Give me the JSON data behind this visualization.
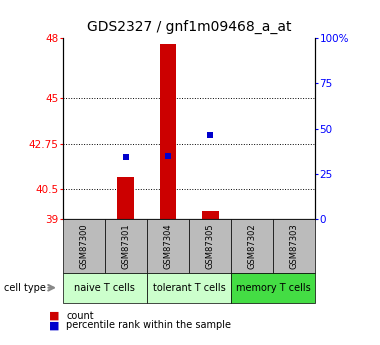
{
  "title": "GDS2327 / gnf1m09468_a_at",
  "samples": [
    "GSM87300",
    "GSM87301",
    "GSM87304",
    "GSM87305",
    "GSM87302",
    "GSM87303"
  ],
  "count_values": [
    39.0,
    41.1,
    47.7,
    39.4,
    39.0,
    39.0
  ],
  "percentile_values": [
    null,
    42.1,
    42.15,
    43.2,
    null,
    null
  ],
  "ylim_left": [
    39,
    48
  ],
  "yticks_left": [
    39,
    40.5,
    42.75,
    45,
    48
  ],
  "yticks_right": [
    0,
    25,
    50,
    75,
    100
  ],
  "bar_color": "#cc0000",
  "percentile_color": "#0000cc",
  "title_fontsize": 10,
  "tick_fontsize": 7.5,
  "group_configs": [
    {
      "name": "naive T cells",
      "color": "#ccffcc",
      "start": 0,
      "end": 2
    },
    {
      "name": "tolerant T cells",
      "color": "#ccffcc",
      "start": 2,
      "end": 4
    },
    {
      "name": "memory T cells",
      "color": "#44dd44",
      "start": 4,
      "end": 6
    }
  ],
  "sample_box_color": "#bbbbbb"
}
